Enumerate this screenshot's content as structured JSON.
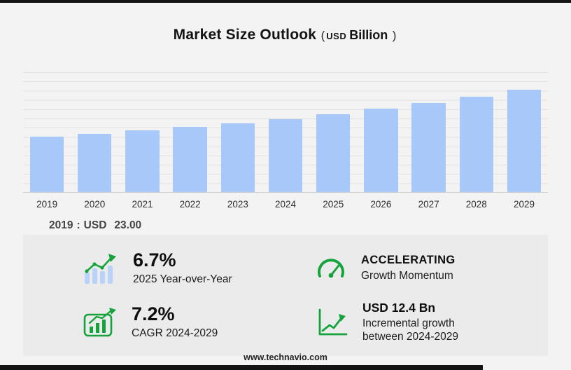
{
  "page": {
    "title": "Market Size Outlook",
    "subtitle": {
      "open": "(",
      "currency": "USD",
      "unit": "Billion",
      "close": ")"
    },
    "footer": "www.technavio.com",
    "colors": {
      "bar": "#a9c8fa",
      "accent_green": "#16a33d",
      "panel": "#ebebeb"
    }
  },
  "chart_data": {
    "type": "bar",
    "title": "Market Size Outlook (USD Billion)",
    "categories": [
      "2019",
      "2020",
      "2021",
      "2022",
      "2023",
      "2024",
      "2025",
      "2026",
      "2027",
      "2028",
      "2029"
    ],
    "values": [
      23.0,
      24.3,
      25.6,
      27.2,
      28.7,
      30.4,
      32.4,
      34.7,
      37.2,
      39.9,
      42.8
    ],
    "ylabel": "",
    "xlabel": "",
    "ylim": [
      0,
      50
    ],
    "grid": true,
    "legend": "none",
    "bar_color": "#a9c8fa",
    "annotation": {
      "year": "2019",
      "colon": ":",
      "currency": "USD",
      "value": "23.00"
    }
  },
  "stats": [
    {
      "id": "yoy",
      "icon": "bars-trend-icon",
      "value": "6.7%",
      "caption": "2025 Year-over-Year"
    },
    {
      "id": "momentum",
      "icon": "gauge-icon",
      "value": "ACCELERATING",
      "caption": "Growth Momentum"
    },
    {
      "id": "cagr",
      "icon": "chart-board-icon",
      "value": "7.2%",
      "caption": "CAGR 2024-2029"
    },
    {
      "id": "incremental",
      "icon": "trend-axis-icon",
      "value": "USD 12.4 Bn",
      "caption": "Incremental growth between 2024-2029"
    }
  ]
}
